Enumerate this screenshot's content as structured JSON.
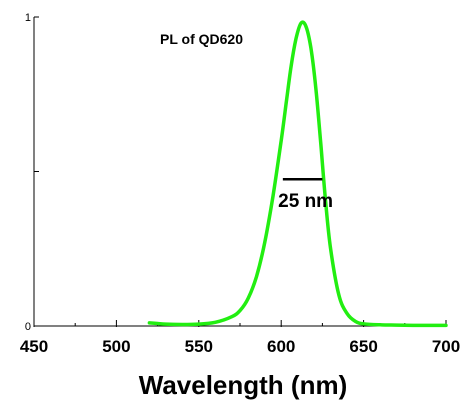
{
  "chart_data": {
    "type": "line",
    "title": "PL of QD620",
    "xlabel": "Wavelength (nm)",
    "ylabel": "",
    "xlim": [
      450,
      700
    ],
    "ylim": [
      0,
      1
    ],
    "x_ticks": [
      450,
      500,
      550,
      600,
      650,
      700
    ],
    "x_tick_labels": [
      "450",
      "500",
      "550",
      "600",
      "650",
      "700"
    ],
    "y_ticks": [
      0,
      0.5,
      1
    ],
    "y_tick_labels": [
      "0",
      "",
      "1"
    ],
    "grid": false,
    "legend": "none",
    "series": [
      {
        "color": "#22ee11",
        "x": [
          520,
          525,
          530,
          540,
          550,
          560,
          570,
          575,
          580,
          585,
          590,
          595,
          600,
          603,
          606,
          609,
          612,
          615,
          618,
          621,
          624,
          627,
          630,
          635,
          640,
          645,
          650,
          660,
          670,
          680,
          690,
          700
        ],
        "y": [
          0.01,
          0.008,
          0.006,
          0.005,
          0.006,
          0.012,
          0.03,
          0.05,
          0.09,
          0.16,
          0.27,
          0.42,
          0.6,
          0.72,
          0.84,
          0.93,
          0.98,
          0.97,
          0.9,
          0.77,
          0.59,
          0.4,
          0.25,
          0.1,
          0.04,
          0.015,
          0.007,
          0.004,
          0.003,
          0.002,
          0.002,
          0.002
        ]
      }
    ],
    "annotations": [
      {
        "text": "25 nm",
        "x1": 601,
        "x2": 625,
        "y": 0.475
      }
    ]
  }
}
